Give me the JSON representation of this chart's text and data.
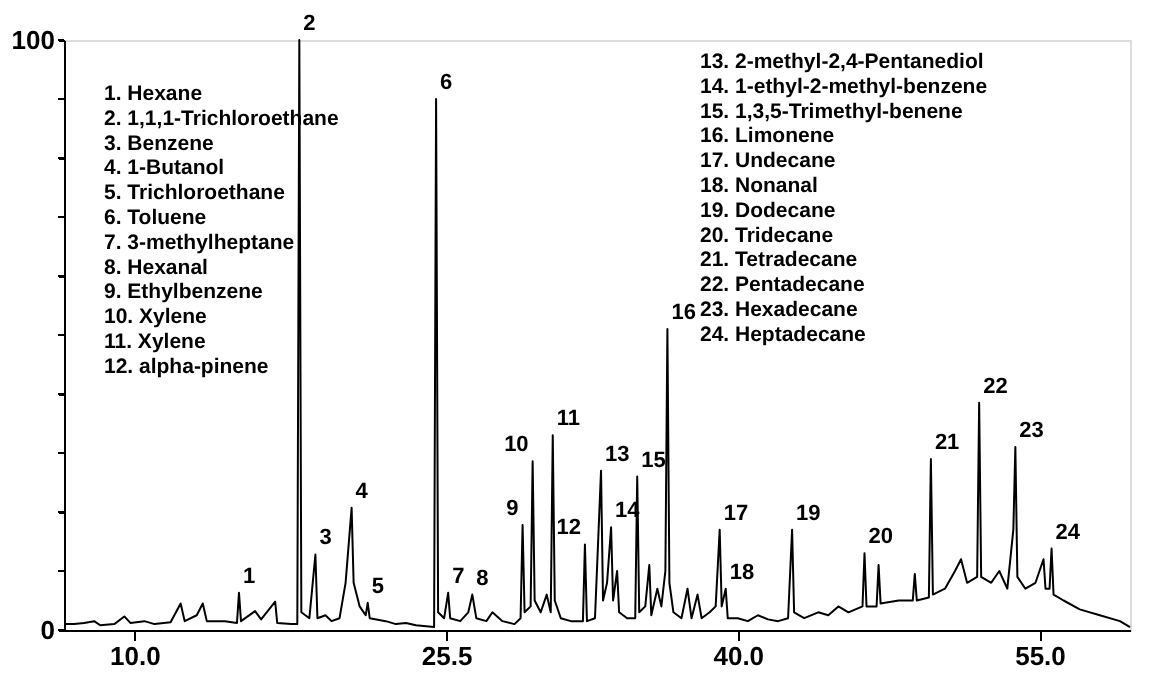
{
  "chart_data": {
    "type": "line",
    "x": [
      6.5,
      7.0,
      7.5,
      8.0,
      8.3,
      9.0,
      9.5,
      9.8,
      10.5,
      11.0,
      11.8,
      12.3,
      12.5,
      13.1,
      13.4,
      13.6,
      14.5,
      15.1,
      15.2,
      15.3,
      16.0,
      16.3,
      17.0,
      17.1,
      17.8,
      18.1,
      18.2,
      18.3,
      18.7,
      19.0,
      19.1,
      19.5,
      19.8,
      20.2,
      20.5,
      20.8,
      20.9,
      21.2,
      21.5,
      21.6,
      21.7,
      22.5,
      23.0,
      23.5,
      24.0,
      24.9,
      25.0,
      25.1,
      25.4,
      25.6,
      25.7,
      26.2,
      26.6,
      26.8,
      27.0,
      27.5,
      27.8,
      28.3,
      28.9,
      29.2,
      29.3,
      29.4,
      29.7,
      29.8,
      29.9,
      30.2,
      30.5,
      30.7,
      30.8,
      30.9,
      31.2,
      31.7,
      32.3,
      32.4,
      32.5,
      32.9,
      33.2,
      33.3,
      33.5,
      33.7,
      33.8,
      34.0,
      34.1,
      34.5,
      34.9,
      35.0,
      35.1,
      35.4,
      35.6,
      35.7,
      36.0,
      36.2,
      36.4,
      36.5,
      36.6,
      36.8,
      37.2,
      37.5,
      37.7,
      38.0,
      38.2,
      38.6,
      38.9,
      39.1,
      39.2,
      39.4,
      39.5,
      40.0,
      40.5,
      41.0,
      41.5,
      42.0,
      42.5,
      42.7,
      42.8,
      43.3,
      44.0,
      44.5,
      45.0,
      45.5,
      46.2,
      46.3,
      46.4,
      46.9,
      47.0,
      47.1,
      48.0,
      48.7,
      48.8,
      48.9,
      49.5,
      49.6,
      49.7,
      50.3,
      50.8,
      51.1,
      51.4,
      51.9,
      52.0,
      52.1,
      52.6,
      53.0,
      53.4,
      53.7,
      53.8,
      53.9,
      54.3,
      54.8,
      55.2,
      55.3,
      55.5,
      55.6,
      55.7,
      56.2,
      57.0,
      58.0,
      59.0,
      59.5
    ],
    "series": [
      {
        "color": "#000000",
        "values": [
          1,
          1,
          1.2,
          1.5,
          0.8,
          1,
          2.3,
          1.2,
          1.5,
          1,
          1.3,
          4.5,
          1.5,
          2.5,
          4.5,
          1.5,
          1.5,
          1.2,
          6.3,
          1.5,
          3.2,
          1.8,
          4.8,
          1.2,
          1,
          1,
          100,
          3,
          2,
          12.8,
          2,
          2.5,
          1.5,
          2,
          8,
          20.7,
          8,
          4,
          2.5,
          4.6,
          2,
          1.5,
          1,
          1.2,
          0.8,
          0.5,
          90,
          3,
          2,
          6.3,
          2,
          1.5,
          3,
          6,
          2,
          1.5,
          3,
          1.5,
          1,
          2,
          17.8,
          3,
          4,
          28.6,
          5,
          3,
          6,
          3,
          33,
          5,
          2,
          1.5,
          1.5,
          14.5,
          1.5,
          2,
          27,
          5,
          8,
          17.4,
          5,
          10,
          3,
          2,
          2,
          26,
          3,
          4,
          11,
          2.5,
          7,
          4,
          10,
          51,
          8,
          3,
          2,
          7,
          2,
          6,
          2,
          3,
          4,
          17,
          4,
          7,
          2,
          2,
          1.5,
          2.5,
          1.8,
          1.5,
          2,
          17,
          3,
          2,
          3,
          2.5,
          4,
          3,
          4,
          13,
          4,
          4,
          11,
          4.5,
          5,
          5,
          9.5,
          5,
          5.5,
          29,
          6,
          7,
          10,
          12,
          8,
          9,
          38.5,
          9,
          8,
          10,
          7,
          17,
          31,
          9,
          7,
          8,
          12,
          7,
          7,
          13.8,
          6,
          5,
          3.5,
          2.5,
          1.5,
          0.5
        ]
      }
    ],
    "xlim": [
      6.5,
      59.5
    ],
    "xticks": [
      {
        "value": 10,
        "label": "10.0"
      },
      25.5,
      {
        "value": 40,
        "label": "40.0"
      },
      {
        "value": 55,
        "label": "55.0"
      }
    ],
    "ylim": [
      0,
      100
    ],
    "yticks": [
      0,
      {
        "value": 10,
        "label": null
      },
      {
        "value": 20,
        "label": null
      },
      {
        "value": 30,
        "label": null
      },
      {
        "value": 40,
        "label": null
      },
      {
        "value": 50,
        "label": null
      },
      {
        "value": 60,
        "label": null
      },
      {
        "value": 70,
        "label": null
      },
      {
        "value": 80,
        "label": null
      },
      {
        "value": 90,
        "label": null
      },
      100
    ],
    "grid": false,
    "annotations": [
      "1. Hexane",
      "2. 1,1,1-Trichloroethane",
      "3. Benzene",
      "4. 1-Butanol",
      "5. Trichloroethane",
      "6. Toluene",
      "7. 3-methylheptane",
      "8. Hexanal",
      "9. Ethylbenzene",
      "10. Xylene",
      "11. Xylene",
      "12. alpha-pinene",
      "13. 2-methyl-2,4-Pentanediol",
      "14. 1-ethyl-2-methyl-benzene",
      "15. 1,3,5-Trimethyl-benene",
      "16. Limonene",
      "17. Undecane",
      "18. Nonanal",
      "19. Dodecane",
      "20. Tridecane",
      "21. Tetradecane",
      "22. Pentadecane",
      "23. Hexadecane",
      "24. Heptadecane",
      {
        "text": "1",
        "x": 15.2,
        "y": 6.3
      },
      {
        "text": "2",
        "x": 18.2,
        "y": 100
      },
      {
        "text": "3",
        "x": 19.0,
        "y": 12.8
      },
      {
        "text": "4",
        "x": 20.8,
        "y": 20.7
      },
      {
        "text": "5",
        "x": 21.6,
        "y": 4.6
      },
      {
        "text": "6",
        "x": 25.0,
        "y": 90
      },
      {
        "text": "7",
        "x": 25.6,
        "y": 6.3
      },
      {
        "text": "8",
        "x": 26.8,
        "y": 6
      },
      {
        "text": "9",
        "x": 29.3,
        "y": 17.8
      },
      {
        "text": "10",
        "x": 29.8,
        "y": 28.6
      },
      {
        "text": "11",
        "x": 30.8,
        "y": 33
      },
      {
        "text": "12",
        "x": 32.4,
        "y": 14.5
      },
      {
        "text": "13",
        "x": 33.2,
        "y": 27
      },
      {
        "text": "14",
        "x": 33.7,
        "y": 17.4
      },
      {
        "text": "15",
        "x": 35.0,
        "y": 26
      },
      {
        "text": "16",
        "x": 36.5,
        "y": 51
      },
      {
        "text": "17",
        "x": 39.1,
        "y": 17
      },
      {
        "text": "18",
        "x": 39.4,
        "y": 7
      },
      {
        "text": "19",
        "x": 42.7,
        "y": 17
      },
      {
        "text": "20",
        "x": 46.3,
        "y": 13
      },
      {
        "text": "21",
        "x": 49.6,
        "y": 29
      },
      {
        "text": "22",
        "x": 52.0,
        "y": 38.5
      },
      {
        "text": "23",
        "x": 53.8,
        "y": 31
      },
      {
        "text": "24",
        "x": 55.6,
        "y": 13.8
      }
    ]
  }
}
